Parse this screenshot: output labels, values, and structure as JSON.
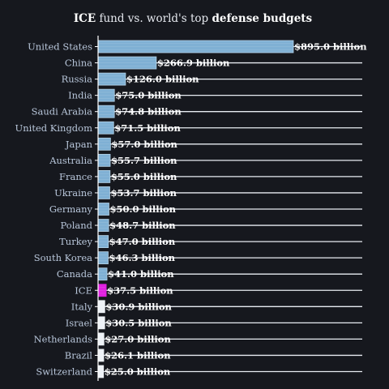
{
  "chart_data": {
    "type": "bar",
    "orientation": "horizontal",
    "title_parts": [
      {
        "text": "ICE",
        "bold": true
      },
      {
        "text": " fund vs. world's top ",
        "bold": false
      },
      {
        "text": "defense budgets",
        "bold": true
      }
    ],
    "categories": [
      "United States",
      "China",
      "Russia",
      "India",
      "Saudi Arabia",
      "United Kingdom",
      "Japan",
      "Australia",
      "France",
      "Ukraine",
      "Germany",
      "Poland",
      "Turkey",
      "South Korea",
      "Canada",
      "ICE",
      "Italy",
      "Israel",
      "Netherlands",
      "Brazil",
      "Switzerland"
    ],
    "values": [
      895.0,
      266.9,
      126.0,
      75.0,
      74.8,
      71.5,
      57.0,
      55.7,
      55.0,
      53.7,
      50.0,
      48.7,
      47.0,
      46.3,
      41.0,
      37.5,
      30.9,
      30.5,
      27.0,
      26.1,
      25.0
    ],
    "value_labels": [
      "$895.0 billion",
      "$266.9 billion",
      "$126.0 billion",
      "$75.0 billion",
      "$74.8 billion",
      "$71.5 billion",
      "$57.0 billion",
      "$55.7 billion",
      "$55.0 billion",
      "$53.7 billion",
      "$50.0 billion",
      "$48.7 billion",
      "$47.0 billion",
      "$46.3 billion",
      "$41.0 billion",
      "$37.5 billion",
      "$30.9 billion",
      "$30.5 billion",
      "$27.0 billion",
      "$26.1 billion",
      "$25.0 billion"
    ],
    "highlight_category": "ICE",
    "xlim": [
      0,
      895
    ],
    "xlabel": "",
    "ylabel": "",
    "grid": false,
    "colors": {
      "background": "#16181e",
      "bar_default": "#7fb0d4",
      "bar_edge": "#b7d5ea",
      "bar_highlight": "#e020e0",
      "guide_line": "#e8ecf2",
      "axis_line": "#ffffff",
      "small_bar": "#eef2f7"
    }
  }
}
